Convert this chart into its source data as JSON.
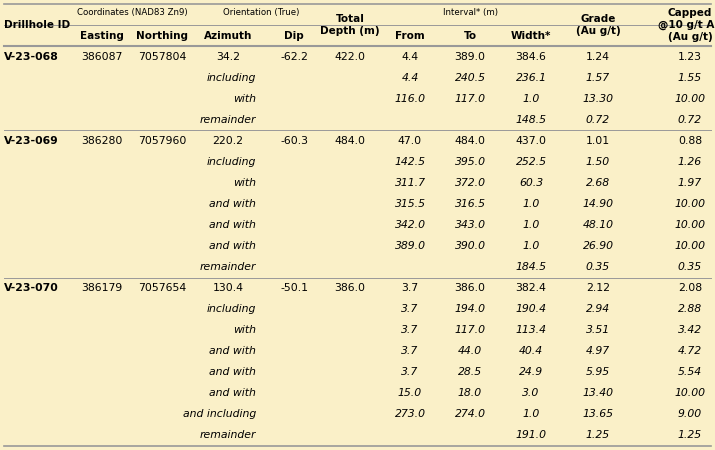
{
  "bg_color": "#FAF0C8",
  "line_color": "#999999",
  "rows": [
    {
      "drillhole": "V-23-068",
      "easting": "386087",
      "northing": "7057804",
      "azimuth": "34.2",
      "dip": "-62.2",
      "depth": "422.0",
      "from_": "4.4",
      "to": "389.0",
      "width": "384.6",
      "grade": "1.24",
      "capped": "1.23",
      "sub": ""
    },
    {
      "drillhole": "",
      "easting": "",
      "northing": "",
      "azimuth": "",
      "dip": "",
      "depth": "",
      "from_": "4.4",
      "to": "240.5",
      "width": "236.1",
      "grade": "1.57",
      "capped": "1.55",
      "sub": "including"
    },
    {
      "drillhole": "",
      "easting": "",
      "northing": "",
      "azimuth": "",
      "dip": "",
      "depth": "",
      "from_": "116.0",
      "to": "117.0",
      "width": "1.0",
      "grade": "13.30",
      "capped": "10.00",
      "sub": "with"
    },
    {
      "drillhole": "",
      "easting": "",
      "northing": "",
      "azimuth": "",
      "dip": "",
      "depth": "",
      "from_": "",
      "to": "",
      "width": "148.5",
      "grade": "0.72",
      "capped": "0.72",
      "sub": "remainder"
    },
    {
      "drillhole": "V-23-069",
      "easting": "386280",
      "northing": "7057960",
      "azimuth": "220.2",
      "dip": "-60.3",
      "depth": "484.0",
      "from_": "47.0",
      "to": "484.0",
      "width": "437.0",
      "grade": "1.01",
      "capped": "0.88",
      "sub": ""
    },
    {
      "drillhole": "",
      "easting": "",
      "northing": "",
      "azimuth": "",
      "dip": "",
      "depth": "",
      "from_": "142.5",
      "to": "395.0",
      "width": "252.5",
      "grade": "1.50",
      "capped": "1.26",
      "sub": "including"
    },
    {
      "drillhole": "",
      "easting": "",
      "northing": "",
      "azimuth": "",
      "dip": "",
      "depth": "",
      "from_": "311.7",
      "to": "372.0",
      "width": "60.3",
      "grade": "2.68",
      "capped": "1.97",
      "sub": "with"
    },
    {
      "drillhole": "",
      "easting": "",
      "northing": "",
      "azimuth": "",
      "dip": "",
      "depth": "",
      "from_": "315.5",
      "to": "316.5",
      "width": "1.0",
      "grade": "14.90",
      "capped": "10.00",
      "sub": "and with"
    },
    {
      "drillhole": "",
      "easting": "",
      "northing": "",
      "azimuth": "",
      "dip": "",
      "depth": "",
      "from_": "342.0",
      "to": "343.0",
      "width": "1.0",
      "grade": "48.10",
      "capped": "10.00",
      "sub": "and with"
    },
    {
      "drillhole": "",
      "easting": "",
      "northing": "",
      "azimuth": "",
      "dip": "",
      "depth": "",
      "from_": "389.0",
      "to": "390.0",
      "width": "1.0",
      "grade": "26.90",
      "capped": "10.00",
      "sub": "and with"
    },
    {
      "drillhole": "",
      "easting": "",
      "northing": "",
      "azimuth": "",
      "dip": "",
      "depth": "",
      "from_": "",
      "to": "",
      "width": "184.5",
      "grade": "0.35",
      "capped": "0.35",
      "sub": "remainder"
    },
    {
      "drillhole": "V-23-070",
      "easting": "386179",
      "northing": "7057654",
      "azimuth": "130.4",
      "dip": "-50.1",
      "depth": "386.0",
      "from_": "3.7",
      "to": "386.0",
      "width": "382.4",
      "grade": "2.12",
      "capped": "2.08",
      "sub": ""
    },
    {
      "drillhole": "",
      "easting": "",
      "northing": "",
      "azimuth": "",
      "dip": "",
      "depth": "",
      "from_": "3.7",
      "to": "194.0",
      "width": "190.4",
      "grade": "2.94",
      "capped": "2.88",
      "sub": "including"
    },
    {
      "drillhole": "",
      "easting": "",
      "northing": "",
      "azimuth": "",
      "dip": "",
      "depth": "",
      "from_": "3.7",
      "to": "117.0",
      "width": "113.4",
      "grade": "3.51",
      "capped": "3.42",
      "sub": "with"
    },
    {
      "drillhole": "",
      "easting": "",
      "northing": "",
      "azimuth": "",
      "dip": "",
      "depth": "",
      "from_": "3.7",
      "to": "44.0",
      "width": "40.4",
      "grade": "4.97",
      "capped": "4.72",
      "sub": "and with"
    },
    {
      "drillhole": "",
      "easting": "",
      "northing": "",
      "azimuth": "",
      "dip": "",
      "depth": "",
      "from_": "3.7",
      "to": "28.5",
      "width": "24.9",
      "grade": "5.95",
      "capped": "5.54",
      "sub": "and with"
    },
    {
      "drillhole": "",
      "easting": "",
      "northing": "",
      "azimuth": "",
      "dip": "",
      "depth": "",
      "from_": "15.0",
      "to": "18.0",
      "width": "3.0",
      "grade": "13.40",
      "capped": "10.00",
      "sub": "and with"
    },
    {
      "drillhole": "",
      "easting": "",
      "northing": "",
      "azimuth": "",
      "dip": "",
      "depth": "",
      "from_": "273.0",
      "to": "274.0",
      "width": "1.0",
      "grade": "13.65",
      "capped": "9.00",
      "sub": "and including"
    },
    {
      "drillhole": "",
      "easting": "",
      "northing": "",
      "azimuth": "",
      "dip": "",
      "depth": "",
      "from_": "",
      "to": "",
      "width": "191.0",
      "grade": "1.25",
      "capped": "1.25",
      "sub": "remainder"
    }
  ],
  "separator_after_data_rows": [
    3,
    10
  ],
  "fs_small_header": 6.2,
  "fs_main": 7.5,
  "fs_data": 7.8
}
